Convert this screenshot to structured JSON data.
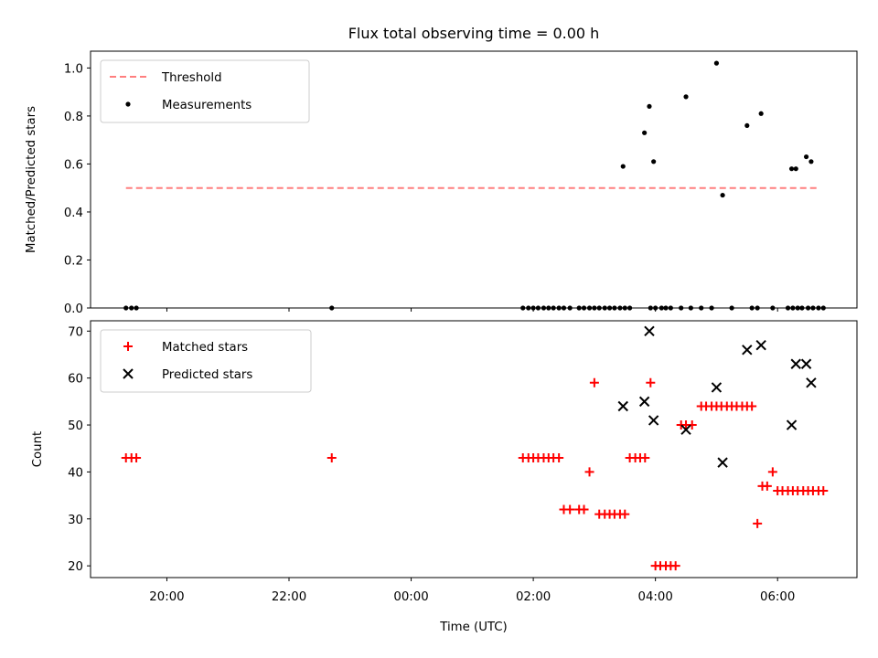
{
  "title": "Flux total observing time = 0.00 h",
  "x_label": "Time (UTC)",
  "x_ticks": [
    {
      "value": 20,
      "label": "20:00"
    },
    {
      "value": 22,
      "label": "22:00"
    },
    {
      "value": 24,
      "label": "00:00"
    },
    {
      "value": 26,
      "label": "02:00"
    },
    {
      "value": 28,
      "label": "04:00"
    },
    {
      "value": 30,
      "label": "06:00"
    }
  ],
  "colors": {
    "threshold": "#ff7f7f",
    "measurements": "#000000",
    "matched": "#ff0000",
    "predicted": "#000000"
  },
  "chart_data": [
    {
      "type": "scatter",
      "ylabel": "Matched/Predicted stars",
      "xlim": [
        18.75,
        31.3
      ],
      "ylim": [
        0,
        1.07
      ],
      "y_ticks": [
        "0.0",
        "0.2",
        "0.4",
        "0.6",
        "0.8",
        "1.0"
      ],
      "legend_position": "top-left",
      "threshold": {
        "name": "Threshold",
        "y": 0.5,
        "x_range": [
          19.33,
          30.67
        ]
      },
      "series": [
        {
          "name": "Measurements",
          "marker": "dot",
          "x": [
            19.33,
            19.42,
            19.5,
            22.7,
            25.83,
            25.92,
            26.0,
            26.08,
            26.17,
            26.25,
            26.33,
            26.42,
            26.5,
            26.6,
            26.75,
            26.83,
            26.92,
            27.0,
            27.08,
            27.17,
            27.25,
            27.33,
            27.42,
            27.5,
            27.58,
            27.92,
            28.0,
            28.1,
            28.17,
            28.25,
            28.42,
            28.58,
            28.75,
            28.92,
            29.25,
            29.58,
            29.67,
            29.92,
            30.17,
            30.25,
            30.33,
            30.4,
            30.5,
            30.58,
            30.67,
            30.75,
            27.47,
            27.82,
            27.9,
            27.97,
            28.5,
            29.0,
            29.1,
            29.5,
            29.73,
            30.23,
            30.3,
            30.47,
            30.55
          ],
          "y": [
            0,
            0,
            0,
            0,
            0,
            0,
            0,
            0,
            0,
            0,
            0,
            0,
            0,
            0,
            0,
            0,
            0,
            0,
            0,
            0,
            0,
            0,
            0,
            0,
            0,
            0,
            0,
            0,
            0,
            0,
            0,
            0,
            0,
            0,
            0,
            0,
            0,
            0,
            0,
            0,
            0,
            0,
            0,
            0,
            0,
            0,
            0.59,
            0.73,
            0.84,
            0.61,
            0.88,
            1.02,
            0.47,
            0.76,
            0.81,
            0.58,
            0.58,
            0.63,
            0.61
          ]
        }
      ]
    },
    {
      "type": "scatter",
      "ylabel": "Count",
      "xlim": [
        18.75,
        31.3
      ],
      "ylim": [
        17.5,
        72.2
      ],
      "y_ticks": [
        "20",
        "30",
        "40",
        "50",
        "60",
        "70"
      ],
      "legend_position": "top-left",
      "series": [
        {
          "name": "Matched stars",
          "marker": "plus",
          "x": [
            19.33,
            19.42,
            19.5,
            22.7,
            25.83,
            25.92,
            26.0,
            26.08,
            26.17,
            26.25,
            26.33,
            26.42,
            26.5,
            26.6,
            26.75,
            26.83,
            26.92,
            27.0,
            27.08,
            27.17,
            27.25,
            27.33,
            27.42,
            27.5,
            27.58,
            27.67,
            27.75,
            27.83,
            27.92,
            28.0,
            28.08,
            28.17,
            28.25,
            28.33,
            28.42,
            28.5,
            28.6,
            28.75,
            28.83,
            28.92,
            29.0,
            29.08,
            29.17,
            29.25,
            29.33,
            29.42,
            29.5,
            29.58,
            29.67,
            29.75,
            29.83,
            29.92,
            30.0,
            30.08,
            30.17,
            30.25,
            30.33,
            30.42,
            30.5,
            30.58,
            30.67,
            30.75
          ],
          "y": [
            43,
            43,
            43,
            43,
            43,
            43,
            43,
            43,
            43,
            43,
            43,
            43,
            32,
            32,
            32,
            32,
            40,
            59,
            31,
            31,
            31,
            31,
            31,
            31,
            43,
            43,
            43,
            43,
            59,
            20,
            20,
            20,
            20,
            20,
            50,
            50,
            50,
            54,
            54,
            54,
            54,
            54,
            54,
            54,
            54,
            54,
            54,
            54,
            29,
            37,
            37,
            40,
            36,
            36,
            36,
            36,
            36,
            36,
            36,
            36,
            36,
            36
          ]
        },
        {
          "name": "Predicted stars",
          "marker": "x",
          "x": [
            27.47,
            27.82,
            27.9,
            27.97,
            28.5,
            29.0,
            29.1,
            29.5,
            29.73,
            30.23,
            30.3,
            30.47,
            30.55
          ],
          "y": [
            54,
            55,
            70,
            51,
            49,
            58,
            42,
            66,
            67,
            50,
            63,
            63,
            59
          ]
        }
      ]
    }
  ]
}
